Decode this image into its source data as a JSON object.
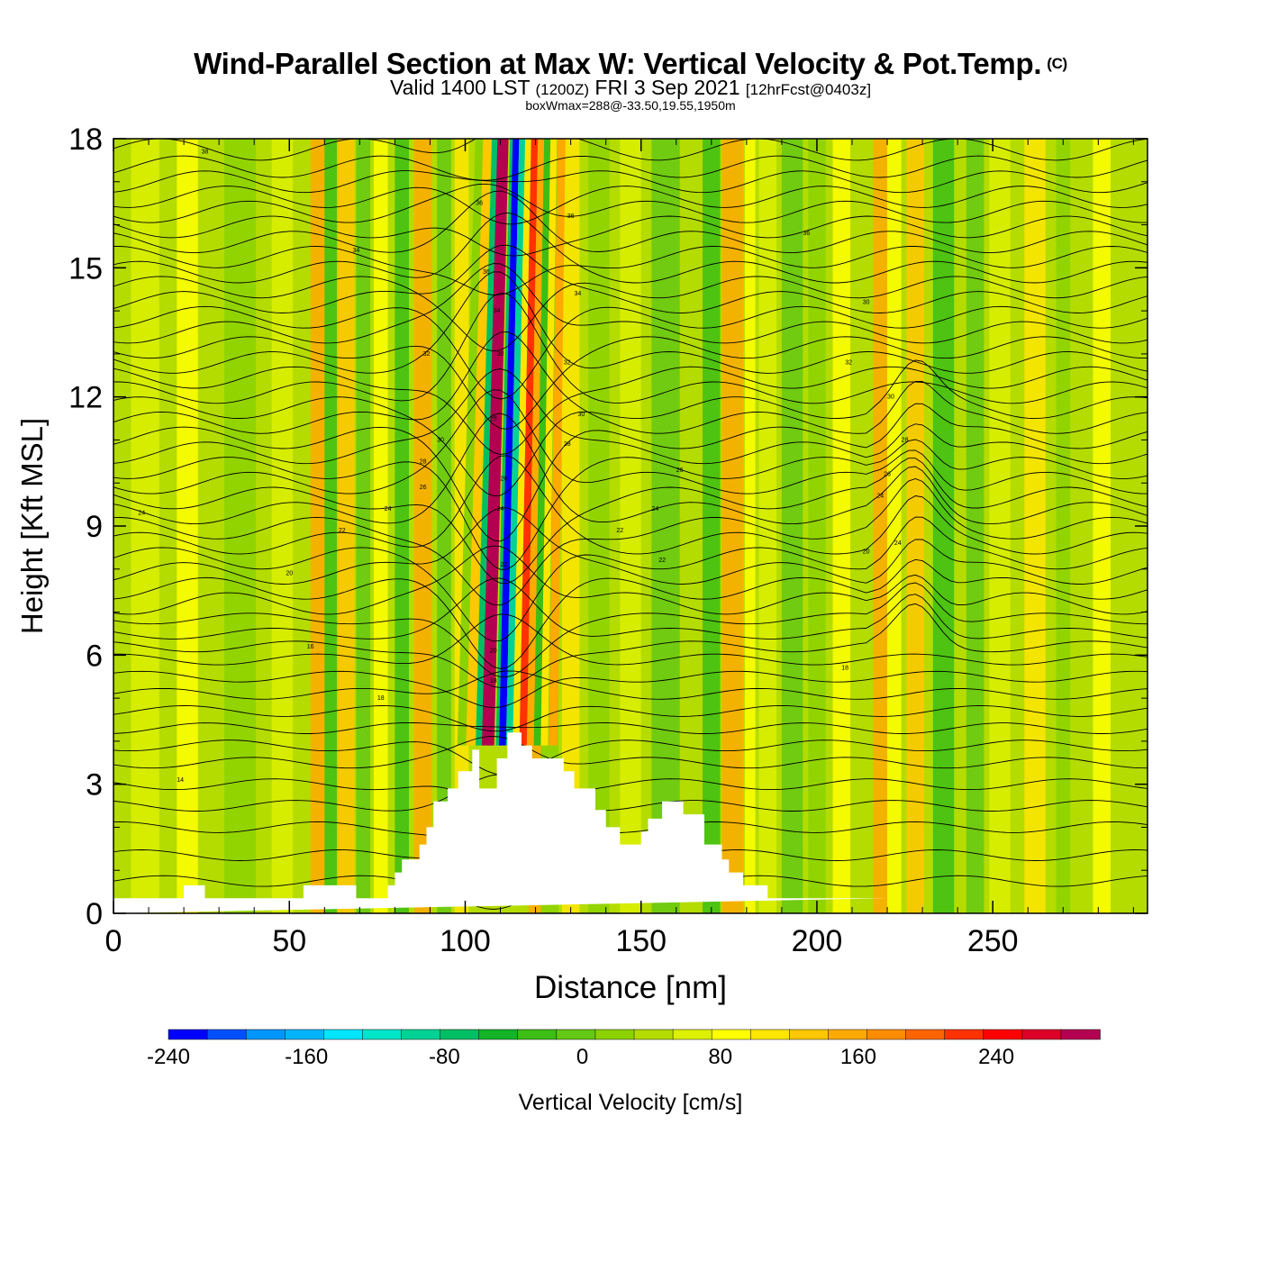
{
  "header": {
    "title": "Wind-Parallel Section at Max W: Vertical Velocity & Pot.Temp.",
    "copyright": "(C)",
    "valid_prefix": "Valid 1400 LST",
    "valid_utc": "(1200Z)",
    "valid_date": "FRI 3 Sep 2021",
    "forecast": "[12hrFcst@0403z]",
    "stats": "boxWmax=288@-33.50,19.55,1950m"
  },
  "colors": {
    "background_field": "#8fd400",
    "terrain": "#ffffff",
    "contour": "#000000"
  },
  "chart_data": {
    "type": "heatmap",
    "xlabel": "Distance [nm]",
    "ylabel": "Height [Kft MSL]",
    "xlim": [
      0,
      294
    ],
    "ylim": [
      0,
      18
    ],
    "xticks": [
      0,
      50,
      100,
      150,
      200,
      250
    ],
    "yticks": [
      0,
      3,
      6,
      9,
      12,
      15,
      18
    ],
    "colorbar": {
      "label": "Vertical Velocity [cm/s]",
      "min": -240,
      "max": 300,
      "step": 20,
      "tick_values": [
        -240,
        -160,
        -80,
        0,
        80,
        160,
        240
      ],
      "colors": [
        "#0000ff",
        "#0050ff",
        "#0096ff",
        "#00b4ff",
        "#00e6ff",
        "#00e6c8",
        "#00d296",
        "#00be64",
        "#14b428",
        "#3cbe14",
        "#64c814",
        "#8cd200",
        "#b4dc00",
        "#dcf000",
        "#ffff00",
        "#ffe600",
        "#ffc800",
        "#ffaa00",
        "#ff8c00",
        "#ff6400",
        "#ff3200",
        "#ff0000",
        "#dc0028",
        "#b40050"
      ]
    },
    "terrain_profile": {
      "x_nm": [
        0,
        20,
        20,
        26,
        26,
        54,
        54,
        69,
        69,
        78,
        78,
        80,
        80,
        82,
        82,
        87,
        87,
        89,
        89,
        91,
        91,
        95,
        95,
        98,
        98,
        102,
        102,
        104,
        104,
        109,
        109,
        112,
        112,
        116,
        116,
        119,
        119,
        128,
        128,
        131,
        131,
        137,
        137,
        140,
        140,
        144,
        144,
        150,
        150,
        152,
        152,
        156,
        156,
        158,
        158,
        162,
        162,
        168,
        168,
        173,
        173,
        175,
        175,
        179,
        179,
        186,
        186,
        220,
        220,
        294
      ],
      "height_kft": [
        0.35,
        0.35,
        0.65,
        0.65,
        0.35,
        0.35,
        0.65,
        0.65,
        0.35,
        0.35,
        0.65,
        0.65,
        0.95,
        0.95,
        1.25,
        1.25,
        1.6,
        1.6,
        2.0,
        2.0,
        2.6,
        2.6,
        2.9,
        2.9,
        3.3,
        3.3,
        3.8,
        3.8,
        2.9,
        2.9,
        3.6,
        3.6,
        4.2,
        4.2,
        3.9,
        3.9,
        3.6,
        3.6,
        3.3,
        3.3,
        2.9,
        2.9,
        2.4,
        2.4,
        2.0,
        2.0,
        1.6,
        1.6,
        1.9,
        1.9,
        2.2,
        2.2,
        2.6,
        2.6,
        2.6,
        2.6,
        2.3,
        2.3,
        1.6,
        1.6,
        1.25,
        1.25,
        0.95,
        0.95,
        0.65,
        0.65,
        0.35,
        0.35
      ]
    },
    "velocity_features": [
      {
        "x_nm": 9,
        "width_nm": 8,
        "value_cms": 20
      },
      {
        "x_nm": 21,
        "width_nm": 6,
        "value_cms": 40
      },
      {
        "x_nm": 36,
        "width_nm": 9,
        "value_cms": -20
      },
      {
        "x_nm": 48,
        "width_nm": 6,
        "value_cms": 20
      },
      {
        "x_nm": 58,
        "width_nm": 4,
        "value_cms": 100
      },
      {
        "x_nm": 62,
        "width_nm": 4,
        "value_cms": -60
      },
      {
        "x_nm": 66,
        "width_nm": 5,
        "value_cms": 90
      },
      {
        "x_nm": 71,
        "width_nm": 4,
        "value_cms": -40
      },
      {
        "x_nm": 76,
        "width_nm": 4,
        "value_cms": 40
      },
      {
        "x_nm": 82,
        "width_nm": 4,
        "value_cms": -60
      },
      {
        "x_nm": 88,
        "width_nm": 5,
        "value_cms": 110
      },
      {
        "x_nm": 94,
        "width_nm": 4,
        "value_cms": -40
      },
      {
        "x_nm": 99,
        "width_nm": 4,
        "value_cms": 60
      },
      {
        "x_nm": 120,
        "width_nm": 4,
        "value_cms": 100
      },
      {
        "x_nm": 124,
        "width_nm": 5,
        "value_cms": -20
      },
      {
        "x_nm": 130,
        "width_nm": 5,
        "value_cms": 70
      },
      {
        "x_nm": 138,
        "width_nm": 6,
        "value_cms": -20
      },
      {
        "x_nm": 147,
        "width_nm": 6,
        "value_cms": 30
      },
      {
        "x_nm": 157,
        "width_nm": 8,
        "value_cms": -30
      },
      {
        "x_nm": 170,
        "width_nm": 5,
        "value_cms": -60
      },
      {
        "x_nm": 176,
        "width_nm": 6,
        "value_cms": 110
      },
      {
        "x_nm": 181,
        "width_nm": 3,
        "value_cms": 40
      },
      {
        "x_nm": 186,
        "width_nm": 5,
        "value_cms": 30
      },
      {
        "x_nm": 193,
        "width_nm": 6,
        "value_cms": -40
      },
      {
        "x_nm": 200,
        "width_nm": 5,
        "value_cms": -20
      },
      {
        "x_nm": 207,
        "width_nm": 5,
        "value_cms": 40
      },
      {
        "x_nm": 218,
        "width_nm": 4,
        "value_cms": 100
      },
      {
        "x_nm": 222,
        "width_nm": 4,
        "value_cms": 40
      },
      {
        "x_nm": 228,
        "width_nm": 5,
        "value_cms": 80
      },
      {
        "x_nm": 236,
        "width_nm": 6,
        "value_cms": -60
      },
      {
        "x_nm": 245,
        "width_nm": 5,
        "value_cms": -40
      },
      {
        "x_nm": 252,
        "width_nm": 6,
        "value_cms": 30
      },
      {
        "x_nm": 262,
        "width_nm": 6,
        "value_cms": 60
      },
      {
        "x_nm": 270,
        "width_nm": 4,
        "value_cms": -20
      },
      {
        "x_nm": 281,
        "width_nm": 5,
        "value_cms": 40
      }
    ],
    "updraft_core": [
      {
        "offset_nm": -10,
        "width_nm": 2.5,
        "value_cms": -20
      },
      {
        "offset_nm": -7.5,
        "width_nm": 2.5,
        "value_cms": 90
      },
      {
        "offset_nm": -5,
        "width_nm": 2,
        "value_cms": -90
      },
      {
        "offset_nm": -3,
        "width_nm": 2.5,
        "value_cms": 240
      },
      {
        "offset_nm": -1.5,
        "width_nm": 1.5,
        "value_cms": 288
      },
      {
        "offset_nm": 0.2,
        "width_nm": 1,
        "value_cms": -100
      },
      {
        "offset_nm": 1.6,
        "width_nm": 2,
        "value_cms": -230
      },
      {
        "offset_nm": 3.6,
        "width_nm": 2,
        "value_cms": -120
      },
      {
        "offset_nm": 5.5,
        "width_nm": 2,
        "value_cms": 60
      },
      {
        "offset_nm": 7.5,
        "width_nm": 2.2,
        "value_cms": 160
      },
      {
        "offset_nm": 9.5,
        "width_nm": 2,
        "value_cms": 100
      },
      {
        "offset_nm": 11.5,
        "width_nm": 2,
        "value_cms": -60
      },
      {
        "offset_nm": 13.5,
        "width_nm": 2,
        "value_cms": 70
      },
      {
        "offset_nm": 16,
        "width_nm": 2.5,
        "value_cms": 110
      }
    ],
    "updraft_axis": {
      "x_base_nm": 109,
      "height_base_kft": 3.9,
      "x_top_nm": 113,
      "height_top_kft": 18
    },
    "theta_contours": {
      "base_heights_kft": [
        0.75,
        1.35,
        2.0,
        2.5,
        3.0,
        3.5,
        3.9,
        4.3,
        4.7,
        5.1,
        5.5,
        5.9,
        6.2,
        6.5,
        6.85,
        7.2,
        7.55,
        7.9,
        8.25,
        8.6,
        8.95,
        9.3,
        9.65,
        10.0,
        10.35,
        10.7,
        11.05,
        11.4,
        11.75,
        12.1,
        12.45,
        12.8,
        13.15,
        13.5,
        13.85,
        14.2,
        14.55,
        14.9,
        15.25,
        15.6,
        15.95,
        16.3,
        16.65,
        17.0,
        17.35,
        17.75
      ],
      "labels": [
        {
          "text": "14",
          "x_nm": 19,
          "height_kft": 3.1
        },
        {
          "text": "16",
          "x_nm": 56,
          "height_kft": 6.2
        },
        {
          "text": "18",
          "x_nm": 76,
          "height_kft": 5.0
        },
        {
          "text": "18",
          "x_nm": 108,
          "height_kft": 5.4
        },
        {
          "text": "18",
          "x_nm": 208,
          "height_kft": 5.7
        },
        {
          "text": "20",
          "x_nm": 50,
          "height_kft": 7.9
        },
        {
          "text": "20",
          "x_nm": 108,
          "height_kft": 6.1
        },
        {
          "text": "20",
          "x_nm": 214,
          "height_kft": 8.4
        },
        {
          "text": "22",
          "x_nm": 65,
          "height_kft": 8.9
        },
        {
          "text": "22",
          "x_nm": 111,
          "height_kft": 8.1
        },
        {
          "text": "22",
          "x_nm": 144,
          "height_kft": 8.9
        },
        {
          "text": "22",
          "x_nm": 156,
          "height_kft": 8.2
        },
        {
          "text": "24",
          "x_nm": 8,
          "height_kft": 9.3
        },
        {
          "text": "24",
          "x_nm": 78,
          "height_kft": 9.4
        },
        {
          "text": "24",
          "x_nm": 110,
          "height_kft": 9.4
        },
        {
          "text": "24",
          "x_nm": 154,
          "height_kft": 9.4
        },
        {
          "text": "24",
          "x_nm": 218,
          "height_kft": 9.7
        },
        {
          "text": "24",
          "x_nm": 223,
          "height_kft": 8.6
        },
        {
          "text": "26",
          "x_nm": 88,
          "height_kft": 9.9
        },
        {
          "text": "26",
          "x_nm": 111,
          "height_kft": 10.1
        },
        {
          "text": "26",
          "x_nm": 161,
          "height_kft": 10.3
        },
        {
          "text": "26",
          "x_nm": 220,
          "height_kft": 10.2
        },
        {
          "text": "28",
          "x_nm": 88,
          "height_kft": 10.5
        },
        {
          "text": "28",
          "x_nm": 129,
          "height_kft": 10.9
        },
        {
          "text": "28",
          "x_nm": 108,
          "height_kft": 11.5
        },
        {
          "text": "28",
          "x_nm": 225,
          "height_kft": 11.0
        },
        {
          "text": "30",
          "x_nm": 93,
          "height_kft": 11.0
        },
        {
          "text": "30",
          "x_nm": 133,
          "height_kft": 11.6
        },
        {
          "text": "30",
          "x_nm": 110,
          "height_kft": 13.0
        },
        {
          "text": "30",
          "x_nm": 221,
          "height_kft": 12.0
        },
        {
          "text": "30",
          "x_nm": 214,
          "height_kft": 14.2
        },
        {
          "text": "32",
          "x_nm": 89,
          "height_kft": 13.0
        },
        {
          "text": "32",
          "x_nm": 129,
          "height_kft": 12.8
        },
        {
          "text": "32",
          "x_nm": 209,
          "height_kft": 12.8
        },
        {
          "text": "34",
          "x_nm": 109,
          "height_kft": 14.0
        },
        {
          "text": "34",
          "x_nm": 132,
          "height_kft": 14.4
        },
        {
          "text": "34",
          "x_nm": 69,
          "height_kft": 15.4
        },
        {
          "text": "36",
          "x_nm": 104,
          "height_kft": 16.5
        },
        {
          "text": "36",
          "x_nm": 130,
          "height_kft": 16.2
        },
        {
          "text": "36",
          "x_nm": 106,
          "height_kft": 14.9
        },
        {
          "text": "36",
          "x_nm": 197,
          "height_kft": 15.8
        },
        {
          "text": "38",
          "x_nm": 26,
          "height_kft": 17.7
        }
      ]
    }
  }
}
